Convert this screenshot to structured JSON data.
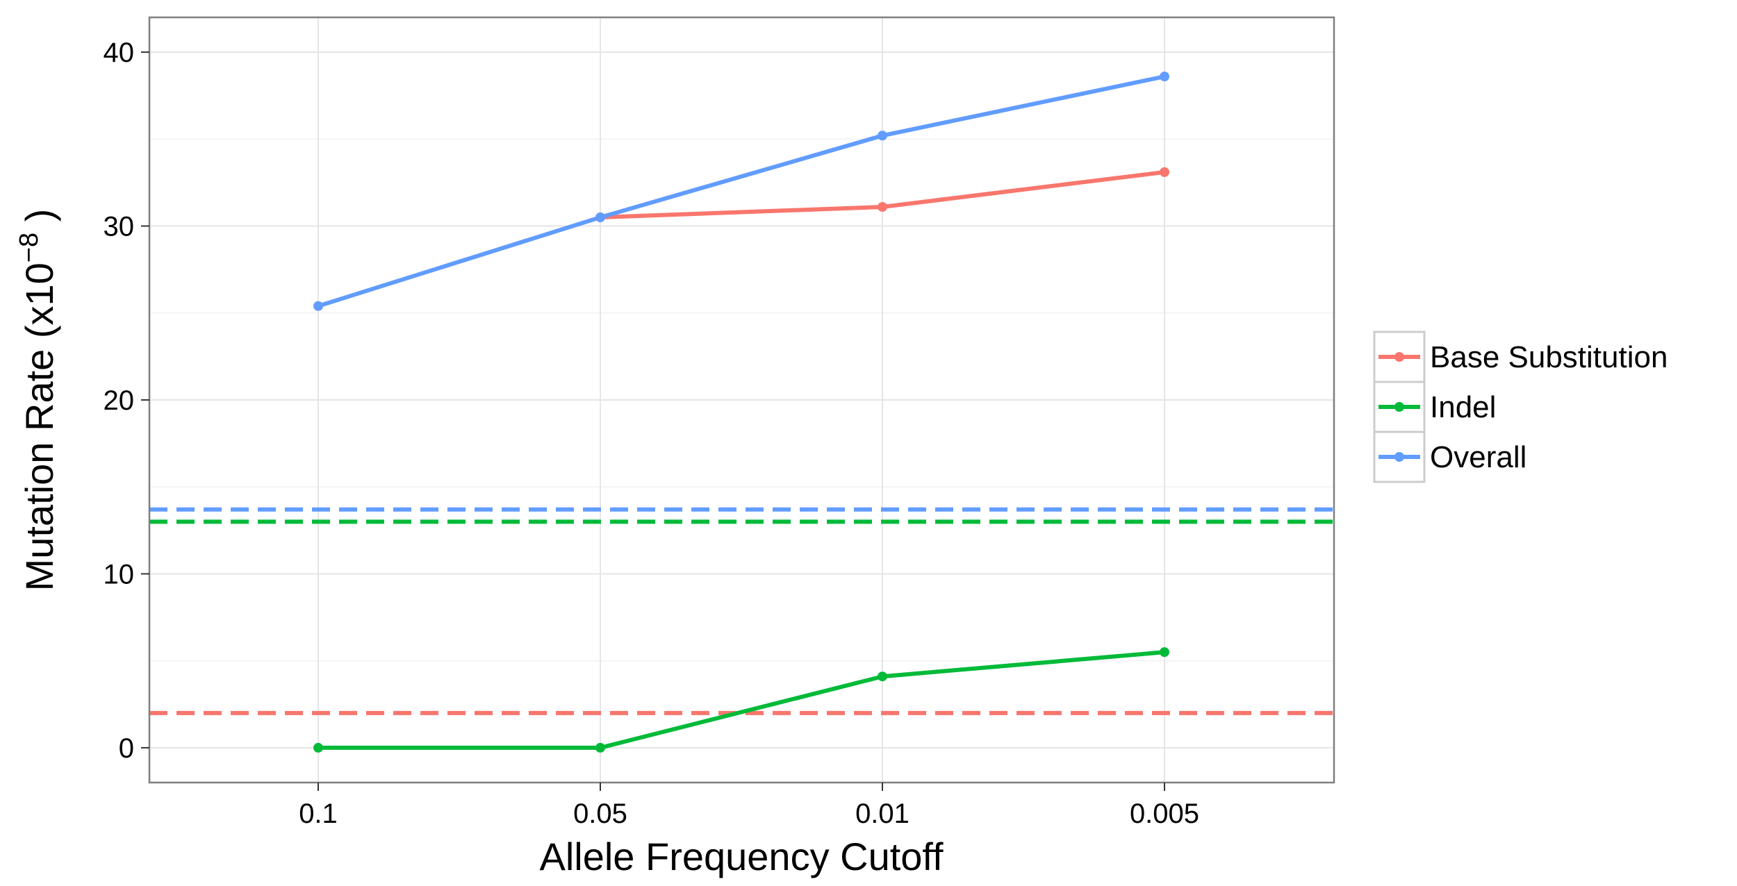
{
  "chart_data": {
    "type": "line",
    "title": "",
    "xlabel": "Allele Frequency Cutoff",
    "ylabel_main": "Mutation Rate (x10",
    "ylabel_exp": "−8",
    "ylabel_close": " )",
    "categories": [
      "0.1",
      "0.05",
      "0.01",
      "0.005"
    ],
    "yticks": [
      "0",
      "10",
      "20",
      "30",
      "40"
    ],
    "ylim": [
      -2,
      42
    ],
    "grid": true,
    "legend_position": "right",
    "series": [
      {
        "name": "Base Substitution",
        "color": "#F8766D",
        "values": [
          null,
          30.5,
          31.1,
          33.1
        ],
        "reference": 2.0
      },
      {
        "name": "Indel",
        "color": "#00BA38",
        "values": [
          0.0,
          0.0,
          4.1,
          5.5
        ],
        "reference": 13.0
      },
      {
        "name": "Overall",
        "color": "#619CFF",
        "values": [
          25.4,
          30.5,
          35.2,
          38.6
        ],
        "reference": 13.7
      }
    ]
  }
}
